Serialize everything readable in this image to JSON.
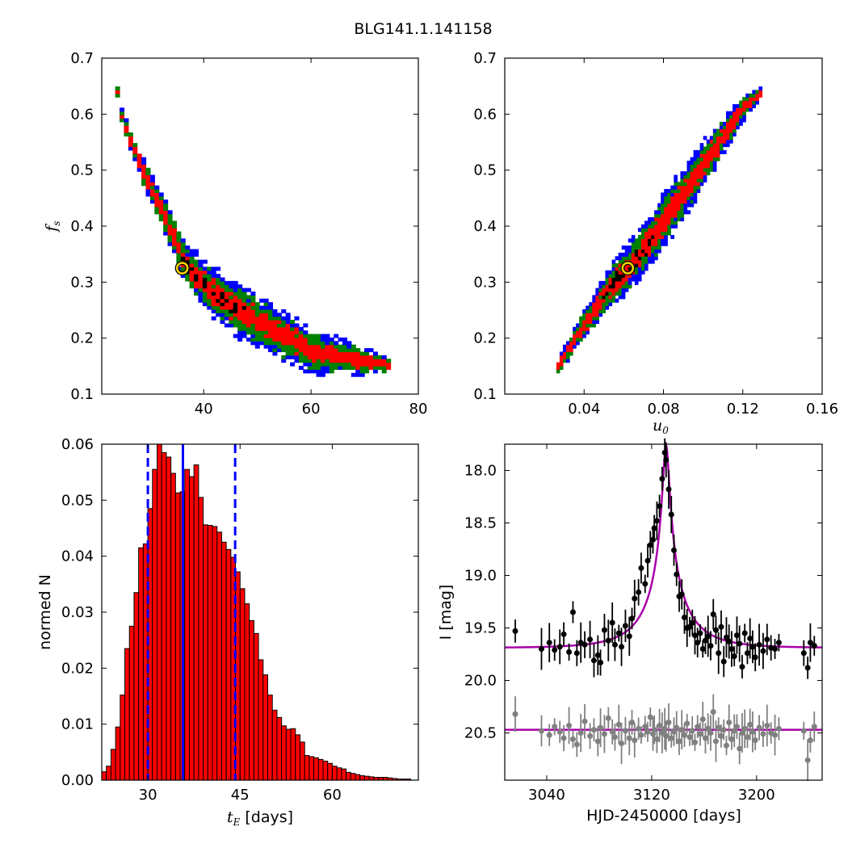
{
  "figure_title": "BLG141.1.141158",
  "chart_data": [
    {
      "id": "fs_vs_tE",
      "type": "heatmap",
      "xlabel": "",
      "ylabel_symbol": "f",
      "ylabel_sub": "s",
      "xlim": [
        21,
        80
      ],
      "ylim": [
        0.1,
        0.7
      ],
      "xticks": [
        40,
        60,
        80
      ],
      "yticks": [
        0.1,
        0.2,
        0.3,
        0.4,
        0.5,
        0.6,
        0.7
      ],
      "xtick_labels": [
        "40",
        "60",
        "80"
      ],
      "ytick_labels": [
        "0.1",
        "0.2",
        "0.3",
        "0.4",
        "0.5",
        "0.6",
        "0.7"
      ],
      "levels": [
        {
          "level": "3-sigma",
          "color": "#0000ff"
        },
        {
          "level": "2-sigma",
          "color": "#008000"
        },
        {
          "level": "1-sigma",
          "color": "#ff0000"
        },
        {
          "level": "best",
          "color": "#000000"
        }
      ],
      "ridge": [
        [
          23.5,
          0.635
        ],
        [
          24.5,
          0.585
        ],
        [
          26,
          0.55
        ],
        [
          28,
          0.5
        ],
        [
          30,
          0.46
        ],
        [
          32,
          0.42
        ],
        [
          34,
          0.38
        ],
        [
          36,
          0.33
        ],
        [
          40,
          0.29
        ],
        [
          44,
          0.26
        ],
        [
          50,
          0.225
        ],
        [
          55,
          0.2
        ],
        [
          60,
          0.17
        ],
        [
          65,
          0.165
        ],
        [
          70,
          0.155
        ],
        [
          74,
          0.15
        ]
      ],
      "best_fit": {
        "x": 36,
        "y": 0.325,
        "marker_color": "#ffd700"
      }
    },
    {
      "id": "fs_vs_u0",
      "type": "heatmap",
      "xlabel_symbol": "u",
      "xlabel_sub": "0",
      "xlim": [
        0.0,
        0.16
      ],
      "ylim": [
        0.1,
        0.7
      ],
      "xticks": [
        0.04,
        0.08,
        0.12,
        0.16
      ],
      "yticks": [
        0.1,
        0.2,
        0.3,
        0.4,
        0.5,
        0.6,
        0.7
      ],
      "xtick_labels": [
        "0.04",
        "0.08",
        "0.12",
        "0.16"
      ],
      "ytick_labels": [
        "0.1",
        "0.2",
        "0.3",
        "0.4",
        "0.5",
        "0.6",
        "0.7"
      ],
      "levels": [
        {
          "level": "3-sigma",
          "color": "#0000ff"
        },
        {
          "level": "2-sigma",
          "color": "#008000"
        },
        {
          "level": "1-sigma",
          "color": "#ff0000"
        },
        {
          "level": "best",
          "color": "#000000"
        }
      ],
      "ridge": [
        [
          0.026,
          0.145
        ],
        [
          0.035,
          0.2
        ],
        [
          0.045,
          0.25
        ],
        [
          0.055,
          0.3
        ],
        [
          0.062,
          0.325
        ],
        [
          0.07,
          0.36
        ],
        [
          0.08,
          0.41
        ],
        [
          0.09,
          0.46
        ],
        [
          0.1,
          0.51
        ],
        [
          0.11,
          0.56
        ],
        [
          0.12,
          0.61
        ],
        [
          0.128,
          0.635
        ]
      ],
      "best_fit": {
        "x": 0.062,
        "y": 0.325,
        "marker_color": "#ffd700"
      }
    },
    {
      "id": "tE_histogram",
      "type": "bar",
      "xlabel_symbol": "t",
      "xlabel_sub": "E",
      "xlabel_suffix": " [days]",
      "ylabel": "normed N",
      "xlim": [
        22.5,
        74
      ],
      "ylim": [
        0.0,
        0.06
      ],
      "xticks": [
        30,
        45,
        60
      ],
      "yticks": [
        0.0,
        0.01,
        0.02,
        0.03,
        0.04,
        0.05,
        0.06
      ],
      "xtick_labels": [
        "30",
        "45",
        "60"
      ],
      "ytick_labels": [
        "0.00",
        "0.01",
        "0.02",
        "0.03",
        "0.04",
        "0.05",
        "0.06"
      ],
      "bin_start": 22.5,
      "bin_width": 0.75,
      "bar_color": "#ff0000",
      "values": [
        0.0015,
        0.0025,
        0.0055,
        0.0095,
        0.0152,
        0.0235,
        0.0275,
        0.0335,
        0.0415,
        0.0422,
        0.0485,
        0.0555,
        0.0601,
        0.0585,
        0.0577,
        0.0548,
        0.0513,
        0.0515,
        0.0555,
        0.0542,
        0.0563,
        0.0505,
        0.0456,
        0.0455,
        0.0453,
        0.0443,
        0.0425,
        0.0412,
        0.0398,
        0.0372,
        0.0342,
        0.0315,
        0.0285,
        0.0262,
        0.0215,
        0.0188,
        0.0152,
        0.0125,
        0.0112,
        0.0097,
        0.0091,
        0.0092,
        0.0081,
        0.0068,
        0.0044,
        0.0042,
        0.004,
        0.0037,
        0.0034,
        0.003,
        0.0025,
        0.0022,
        0.002,
        0.0014,
        0.0012,
        0.001,
        0.0008,
        0.0007,
        0.0006,
        0.0005,
        0.0005,
        0.0005,
        0.0004,
        0.0003,
        0.0002,
        0.0002,
        0.0002
      ],
      "vlines": [
        {
          "x": 30.0,
          "style": "dashed",
          "color": "#0000ff"
        },
        {
          "x": 35.7,
          "style": "solid",
          "color": "#0000ff"
        },
        {
          "x": 44.2,
          "style": "dashed",
          "color": "#0000ff"
        }
      ]
    },
    {
      "id": "light_curve",
      "type": "scatter",
      "xlabel": "HJD-2450000 [days]",
      "ylabel": "I [mag]",
      "xlim": [
        3008,
        3250
      ],
      "ylim": [
        20.95,
        17.75
      ],
      "y_inverted": true,
      "xticks": [
        3040,
        3120,
        3200
      ],
      "yticks": [
        18.0,
        18.5,
        19.0,
        19.5,
        20.0,
        20.5
      ],
      "xtick_labels": [
        "3040",
        "3120",
        "3200"
      ],
      "ytick_labels": [
        "18.0",
        "18.5",
        "19.0",
        "19.5",
        "20.0",
        "20.5"
      ],
      "model": {
        "color": "#aa00aa",
        "baseline": 19.69,
        "peak_mag": 17.82,
        "t0": 3131,
        "tE": 36,
        "u0": 0.062,
        "fs": 0.325
      },
      "residual_baseline": {
        "color": "#aa00aa",
        "value": 20.47
      },
      "series": [
        {
          "role": "data",
          "color": "#000000",
          "points": [
            [
              3016,
              19.53
            ],
            [
              3036,
              19.7
            ],
            [
              3042,
              19.64
            ],
            [
              3046,
              19.71
            ],
            [
              3050,
              19.68
            ],
            [
              3053,
              19.56
            ],
            [
              3057,
              19.73
            ],
            [
              3060,
              19.35
            ],
            [
              3063,
              19.74
            ],
            [
              3066,
              19.64
            ],
            [
              3069,
              19.66
            ],
            [
              3073,
              19.61
            ],
            [
              3076,
              19.81
            ],
            [
              3079,
              19.76
            ],
            [
              3081,
              19.83
            ],
            [
              3084,
              19.52
            ],
            [
              3087,
              19.62
            ],
            [
              3090,
              19.45
            ],
            [
              3092,
              19.66
            ],
            [
              3095,
              19.55
            ],
            [
              3097,
              19.68
            ],
            [
              3100,
              19.48
            ],
            [
              3103,
              19.58
            ],
            [
              3105,
              19.41
            ],
            [
              3107,
              19.22
            ],
            [
              3110,
              19.16
            ],
            [
              3112,
              18.93
            ],
            [
              3115,
              19.08
            ],
            [
              3117,
              18.86
            ],
            [
              3119,
              18.71
            ],
            [
              3121,
              18.66
            ],
            [
              3122,
              18.55
            ],
            [
              3124,
              18.48
            ],
            [
              3126,
              18.34
            ],
            [
              3128,
              18.08
            ],
            [
              3130,
              17.83
            ],
            [
              3131,
              17.9
            ],
            [
              3133,
              18.18
            ],
            [
              3135,
              18.42
            ],
            [
              3137,
              18.76
            ],
            [
              3139,
              18.99
            ],
            [
              3141,
              19.2
            ],
            [
              3143,
              19.18
            ],
            [
              3145,
              19.4
            ],
            [
              3147,
              19.5
            ],
            [
              3149,
              19.49
            ],
            [
              3151,
              19.45
            ],
            [
              3153,
              19.57
            ],
            [
              3155,
              19.64
            ],
            [
              3157,
              19.55
            ],
            [
              3159,
              19.7
            ],
            [
              3161,
              19.62
            ],
            [
              3163,
              19.58
            ],
            [
              3165,
              19.67
            ],
            [
              3167,
              19.37
            ],
            [
              3169,
              19.52
            ],
            [
              3171,
              19.74
            ],
            [
              3173,
              19.49
            ],
            [
              3175,
              19.82
            ],
            [
              3177,
              19.59
            ],
            [
              3179,
              19.63
            ],
            [
              3181,
              19.7
            ],
            [
              3183,
              19.77
            ],
            [
              3185,
              19.57
            ],
            [
              3187,
              19.65
            ],
            [
              3189,
              19.87
            ],
            [
              3191,
              19.55
            ],
            [
              3193,
              19.74
            ],
            [
              3195,
              19.6
            ],
            [
              3197,
              19.68
            ],
            [
              3199,
              19.78
            ],
            [
              3202,
              19.66
            ],
            [
              3205,
              19.72
            ],
            [
              3208,
              19.61
            ],
            [
              3211,
              19.69
            ],
            [
              3214,
              19.7
            ],
            [
              3217,
              19.64
            ],
            [
              3236,
              19.74
            ],
            [
              3239,
              19.88
            ],
            [
              3241,
              19.64
            ],
            [
              3244,
              19.67
            ]
          ]
        },
        {
          "role": "residuals",
          "color": "#808080",
          "points": [
            [
              3016,
              20.32
            ],
            [
              3036,
              20.48
            ],
            [
              3042,
              20.52
            ],
            [
              3046,
              20.44
            ],
            [
              3050,
              20.49
            ],
            [
              3053,
              20.55
            ],
            [
              3057,
              20.43
            ],
            [
              3060,
              20.56
            ],
            [
              3063,
              20.61
            ],
            [
              3066,
              20.5
            ],
            [
              3069,
              20.39
            ],
            [
              3073,
              20.53
            ],
            [
              3076,
              20.47
            ],
            [
              3079,
              20.58
            ],
            [
              3081,
              20.45
            ],
            [
              3084,
              20.51
            ],
            [
              3087,
              20.36
            ],
            [
              3090,
              20.49
            ],
            [
              3092,
              20.54
            ],
            [
              3095,
              20.42
            ],
            [
              3097,
              20.6
            ],
            [
              3100,
              20.48
            ],
            [
              3103,
              20.55
            ],
            [
              3105,
              20.4
            ],
            [
              3107,
              20.57
            ],
            [
              3110,
              20.46
            ],
            [
              3112,
              20.52
            ],
            [
              3115,
              20.44
            ],
            [
              3117,
              20.49
            ],
            [
              3119,
              20.35
            ],
            [
              3121,
              20.51
            ],
            [
              3122,
              20.47
            ],
            [
              3124,
              20.56
            ],
            [
              3126,
              20.43
            ],
            [
              3128,
              20.5
            ],
            [
              3130,
              20.46
            ],
            [
              3131,
              20.53
            ],
            [
              3133,
              20.4
            ],
            [
              3135,
              20.55
            ],
            [
              3137,
              20.49
            ],
            [
              3139,
              20.45
            ],
            [
              3141,
              20.58
            ],
            [
              3143,
              20.47
            ],
            [
              3145,
              20.52
            ],
            [
              3147,
              20.41
            ],
            [
              3149,
              20.54
            ],
            [
              3151,
              20.48
            ],
            [
              3153,
              20.59
            ],
            [
              3155,
              20.44
            ],
            [
              3157,
              20.51
            ],
            [
              3159,
              20.37
            ],
            [
              3161,
              20.55
            ],
            [
              3163,
              20.46
            ],
            [
              3165,
              20.5
            ],
            [
              3167,
              20.3
            ],
            [
              3169,
              20.58
            ],
            [
              3171,
              20.45
            ],
            [
              3173,
              20.53
            ],
            [
              3175,
              20.47
            ],
            [
              3177,
              20.62
            ],
            [
              3179,
              20.4
            ],
            [
              3181,
              20.56
            ],
            [
              3183,
              20.48
            ],
            [
              3185,
              20.44
            ],
            [
              3187,
              20.65
            ],
            [
              3189,
              20.5
            ],
            [
              3191,
              20.46
            ],
            [
              3193,
              20.54
            ],
            [
              3195,
              20.42
            ],
            [
              3197,
              20.49
            ],
            [
              3199,
              20.57
            ],
            [
              3202,
              20.45
            ],
            [
              3205,
              20.51
            ],
            [
              3208,
              20.43
            ],
            [
              3211,
              20.5
            ],
            [
              3214,
              20.52
            ],
            [
              3217,
              20.46
            ],
            [
              3236,
              20.48
            ],
            [
              3239,
              20.76
            ],
            [
              3241,
              20.57
            ],
            [
              3244,
              20.44
            ]
          ]
        }
      ]
    }
  ]
}
